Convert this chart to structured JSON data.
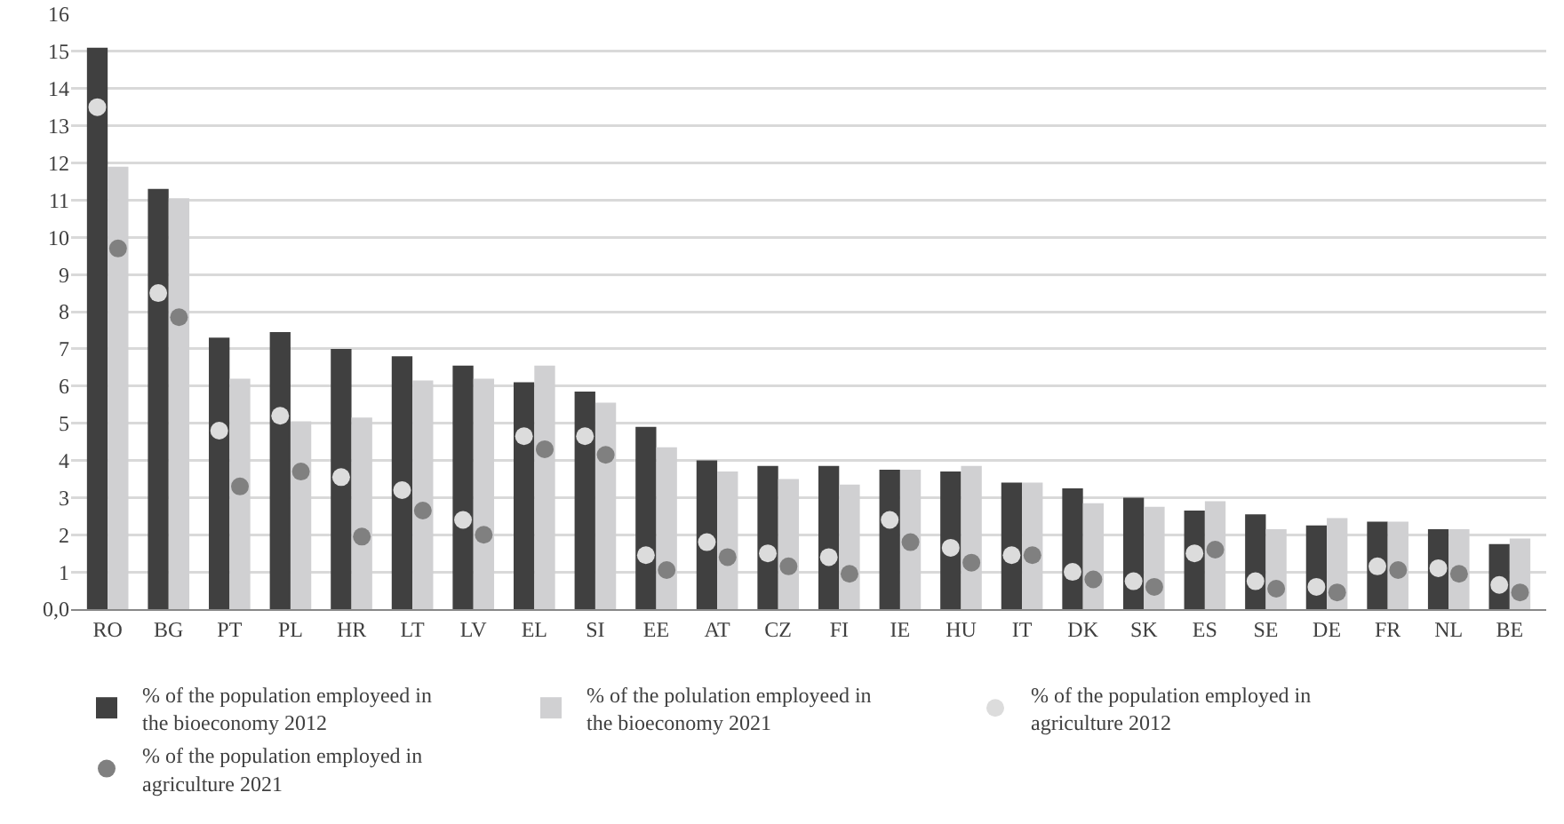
{
  "chart_data": {
    "type": "bar",
    "categories": [
      "RO",
      "BG",
      "PT",
      "PL",
      "HR",
      "LT",
      "LV",
      "EL",
      "SI",
      "EE",
      "AT",
      "CZ",
      "FI",
      "IE",
      "HU",
      "IT",
      "DK",
      "SK",
      "ES",
      "SE",
      "DE",
      "FR",
      "NL",
      "BE"
    ],
    "series": [
      {
        "name": "% of the population employeed in the bioeconomy 2012",
        "color": "#404040",
        "values": [
          15.1,
          11.3,
          7.3,
          7.45,
          7.0,
          6.8,
          6.55,
          6.1,
          5.85,
          4.9,
          4.0,
          3.85,
          3.85,
          3.75,
          3.7,
          3.4,
          3.25,
          3.0,
          2.65,
          2.55,
          2.25,
          2.35,
          2.15,
          1.75
        ]
      },
      {
        "name": "% of the polulation employeed in the bioeconomy 2021",
        "color": "#d0d0d2",
        "values": [
          11.9,
          11.05,
          6.2,
          5.05,
          5.15,
          6.15,
          6.2,
          6.55,
          5.55,
          4.35,
          3.7,
          3.5,
          3.35,
          3.75,
          3.85,
          3.4,
          2.85,
          2.75,
          2.9,
          2.15,
          2.45,
          2.35,
          2.15,
          1.9
        ]
      },
      {
        "name": "% of the population employed in agriculture 2012",
        "type": "scatter",
        "color": "#dcdcdc",
        "values": [
          13.5,
          8.5,
          4.8,
          5.2,
          3.55,
          3.2,
          2.4,
          4.65,
          4.65,
          1.45,
          1.8,
          1.5,
          1.4,
          2.4,
          1.65,
          1.45,
          1.0,
          0.75,
          1.5,
          0.75,
          0.6,
          1.15,
          1.1,
          0.65
        ]
      },
      {
        "name": "% of the population employed in agriculture 2021",
        "type": "scatter",
        "color": "#808080",
        "values": [
          9.7,
          7.85,
          3.3,
          3.7,
          1.95,
          2.65,
          2.0,
          4.3,
          4.15,
          1.05,
          1.4,
          1.15,
          0.95,
          1.8,
          1.25,
          1.45,
          0.8,
          0.6,
          1.6,
          0.55,
          0.45,
          1.05,
          0.95,
          0.45
        ]
      }
    ],
    "ylim": [
      0,
      16
    ],
    "yticks": [
      {
        "value": 0,
        "label": "0,0"
      },
      1,
      2,
      3,
      4,
      5,
      6,
      7,
      8,
      9,
      10,
      11,
      12,
      13,
      14,
      15,
      16
    ],
    "grid": "y",
    "legend": "bottom",
    "marker": "circle"
  }
}
